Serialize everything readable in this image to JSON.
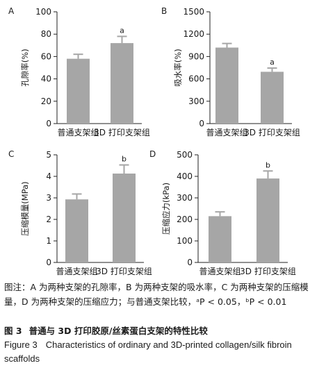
{
  "chart_data": [
    {
      "type": "bar",
      "panel": "A",
      "categories": [
        "普通支架组",
        "3D 打印支架组"
      ],
      "values": [
        58,
        72
      ],
      "errors": [
        4,
        6
      ],
      "annotations": [
        "",
        "a"
      ],
      "ylabel": "孔隙率(%)",
      "ylim": [
        0,
        100
      ],
      "yticks": [
        0,
        20,
        40,
        60,
        80,
        100
      ]
    },
    {
      "type": "bar",
      "panel": "B",
      "categories": [
        "普通支架组",
        "3D 打印支架组"
      ],
      "values": [
        1020,
        695
      ],
      "errors": [
        55,
        50
      ],
      "annotations": [
        "",
        "a"
      ],
      "ylabel": "吸水率(%)",
      "ylim": [
        0,
        1500
      ],
      "yticks": [
        0,
        300,
        600,
        900,
        1200,
        1500
      ]
    },
    {
      "type": "bar",
      "panel": "C",
      "categories": [
        "普通支架组",
        "3D 打印支架组"
      ],
      "values": [
        2.93,
        4.13
      ],
      "errors": [
        0.25,
        0.4
      ],
      "annotations": [
        "",
        "b"
      ],
      "ylabel": "压缩模量(MPa)",
      "ylim": [
        0,
        5
      ],
      "yticks": [
        0,
        1,
        2,
        3,
        4,
        5
      ]
    },
    {
      "type": "bar",
      "panel": "D",
      "categories": [
        "普通支架组",
        "3D 打印支架组"
      ],
      "values": [
        215,
        390
      ],
      "errors": [
        20,
        35
      ],
      "annotations": [
        "",
        "b"
      ],
      "ylabel": "压缩应力(kPa)",
      "ylim": [
        0,
        500
      ],
      "yticks": [
        0,
        100,
        200,
        300,
        400,
        500
      ]
    }
  ],
  "caption": {
    "note": "图注：A 为两种支架的孔隙率，B 为两种支架的吸水率，C 为两种支架的压缩模量，D 为两种支架的压缩应力；与普通支架比较，ᵃP < 0.05，ᵇP < 0.01",
    "zh_fig": "图 3",
    "zh_title": "普通与 3D 打印胶原/丝素蛋白支架的特性比较",
    "en_fig": "Figure 3",
    "en_title": "Characteristics of ordinary and 3D-printed collagen/silk fibroin scaffolds"
  },
  "colors": {
    "bar": "#a6a6a6",
    "axis": "#222222"
  }
}
